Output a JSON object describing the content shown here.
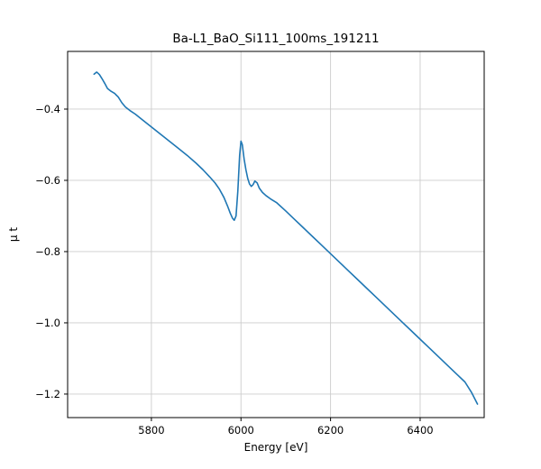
{
  "figure": {
    "background": "#ffffff"
  },
  "chart_data": {
    "type": "line",
    "title": "Ba-L1_BaO_Si111_100ms_191211",
    "xlabel": "Energy [eV]",
    "ylabel": "μ t",
    "xlim": [
      5613,
      6543
    ],
    "ylim": [
      -1.266,
      -0.238
    ],
    "xticks": [
      5800,
      6000,
      6200,
      6400
    ],
    "yticks": [
      -0.4,
      -0.6,
      -0.8,
      -1.0,
      -1.2
    ],
    "grid": true,
    "grid_color": "#cccccc",
    "line_color": "#1f77b4",
    "spine_color": "#000000",
    "series": [
      {
        "name": "mu_t",
        "x": [
          5672,
          5678,
          5684,
          5690,
          5696,
          5702,
          5710,
          5718,
          5726,
          5734,
          5742,
          5752,
          5764,
          5780,
          5800,
          5820,
          5840,
          5860,
          5880,
          5900,
          5915,
          5930,
          5942,
          5952,
          5962,
          5970,
          5976,
          5981,
          5985,
          5989,
          5993,
          5997,
          6000,
          6003,
          6007,
          6011,
          6015,
          6019,
          6023,
          6027,
          6031,
          6036,
          6041,
          6048,
          6056,
          6066,
          6080,
          6100,
          6120,
          6140,
          6160,
          6180,
          6200,
          6220,
          6240,
          6260,
          6280,
          6300,
          6320,
          6340,
          6360,
          6380,
          6400,
          6420,
          6440,
          6460,
          6480,
          6500,
          6515,
          6528
        ],
        "y": [
          -0.302,
          -0.296,
          -0.303,
          -0.315,
          -0.328,
          -0.342,
          -0.35,
          -0.356,
          -0.366,
          -0.382,
          -0.394,
          -0.404,
          -0.414,
          -0.43,
          -0.45,
          -0.47,
          -0.49,
          -0.51,
          -0.53,
          -0.552,
          -0.57,
          -0.59,
          -0.607,
          -0.625,
          -0.648,
          -0.672,
          -0.692,
          -0.706,
          -0.712,
          -0.7,
          -0.63,
          -0.53,
          -0.49,
          -0.5,
          -0.54,
          -0.57,
          -0.594,
          -0.61,
          -0.617,
          -0.612,
          -0.602,
          -0.607,
          -0.622,
          -0.634,
          -0.643,
          -0.652,
          -0.663,
          -0.686,
          -0.71,
          -0.734,
          -0.758,
          -0.782,
          -0.806,
          -0.83,
          -0.854,
          -0.878,
          -0.902,
          -0.926,
          -0.95,
          -0.974,
          -0.998,
          -1.022,
          -1.046,
          -1.07,
          -1.094,
          -1.118,
          -1.142,
          -1.166,
          -1.196,
          -1.228
        ]
      }
    ]
  }
}
